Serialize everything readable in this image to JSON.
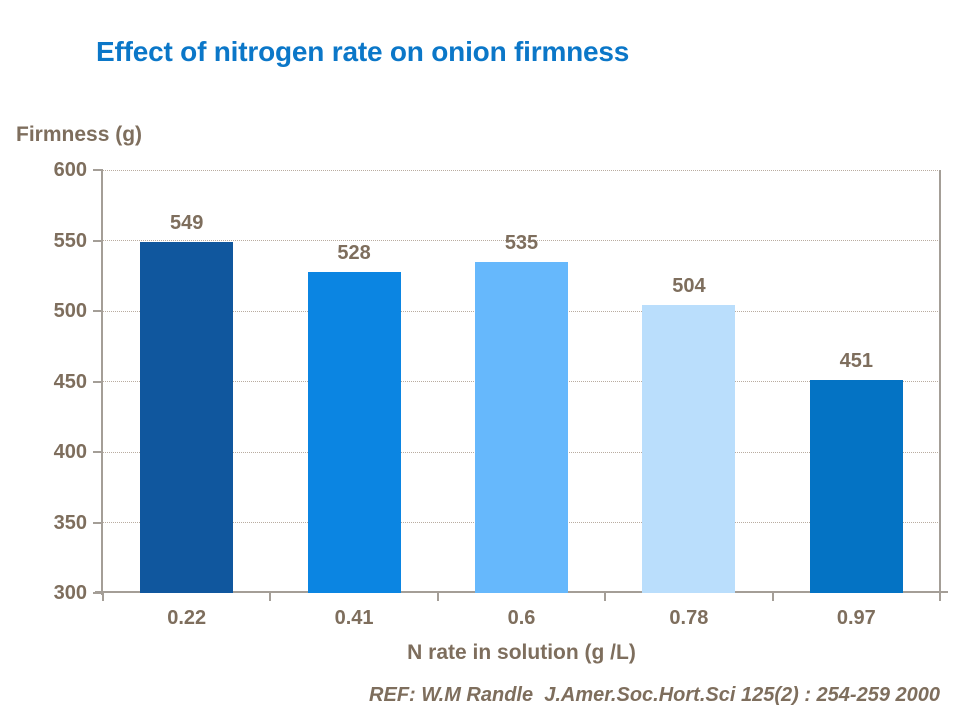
{
  "chart_data": {
    "type": "bar",
    "title": "Effect of nitrogen rate on onion firmness",
    "ylabel": "Firmness (g)",
    "xlabel": "N rate in solution (g /L)",
    "categories": [
      "0.22",
      "0.41",
      "0.6",
      "0.78",
      "0.97"
    ],
    "values": [
      549,
      528,
      535,
      504,
      451
    ],
    "bar_colors": [
      "#10579E",
      "#0B85E2",
      "#66B8FC",
      "#BADEFC",
      "#0473C4"
    ],
    "ylim": [
      300,
      600
    ],
    "yticks": [
      600,
      550,
      500,
      450,
      400,
      350,
      300
    ],
    "grid": "horizontal-dotted",
    "legend": "none",
    "value_labels": "above-bars",
    "reference": "REF: W.M Randle  J.Amer.Soc.Hort.Sci 125(2) : 254-259 2000"
  },
  "colors": {
    "title": "#0B77C8",
    "text": "#7E6E5D",
    "grid": "#B9ACA0",
    "axis": "#A49E97",
    "background": "#FFFFFF"
  }
}
